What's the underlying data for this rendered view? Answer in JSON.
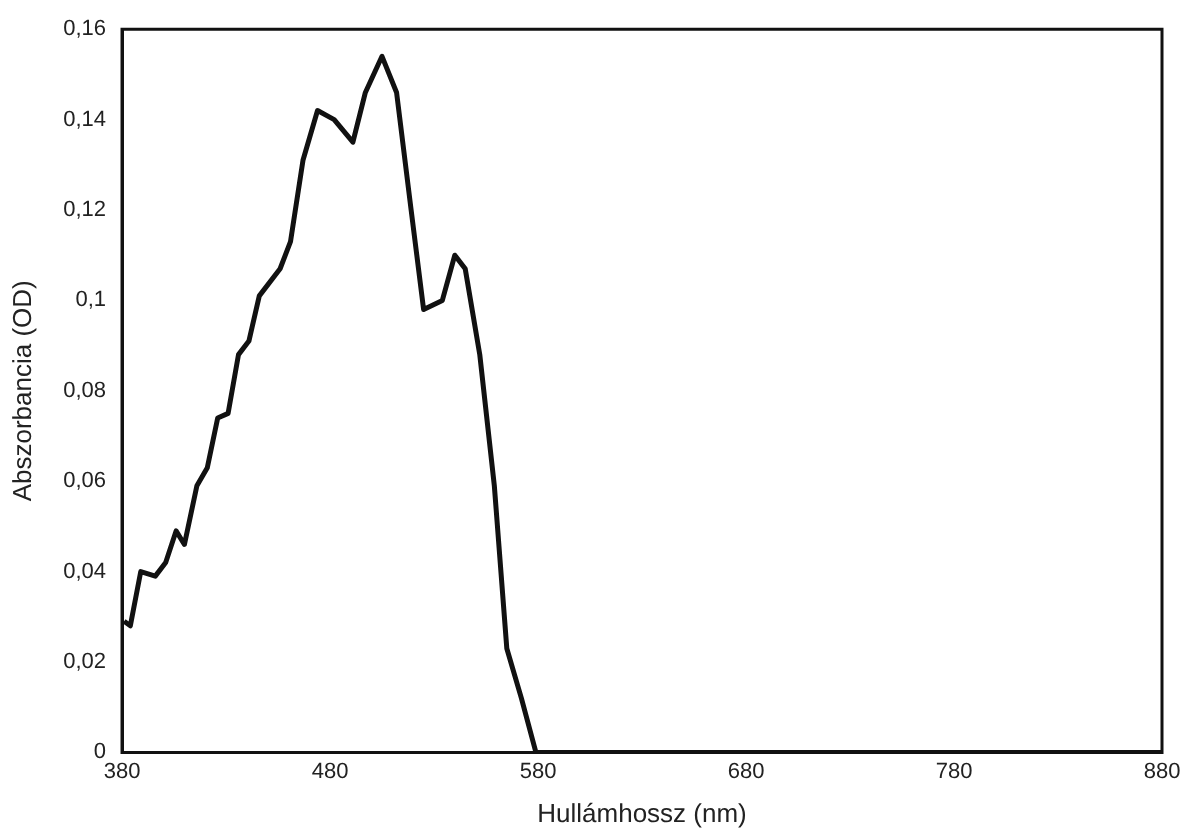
{
  "chart_data": {
    "type": "line",
    "xlabel": "Hullámhossz (nm)",
    "ylabel": "Abszorbancia (OD)",
    "xlim": [
      380,
      880
    ],
    "xticks": [
      380,
      480,
      580,
      680,
      780,
      880
    ],
    "ylim": [
      0,
      0.16
    ],
    "yticks": [
      {
        "value": 0,
        "label": "0"
      },
      {
        "value": 0.02,
        "label": "0,02"
      },
      {
        "value": 0.04,
        "label": "0,04"
      },
      {
        "value": 0.06,
        "label": "0,06"
      },
      {
        "value": 0.08,
        "label": "0,08"
      },
      {
        "value": 0.1,
        "label": "0,1"
      },
      {
        "value": 0.12,
        "label": "0,12"
      },
      {
        "value": 0.14,
        "label": "0,14"
      },
      {
        "value": 0.16,
        "label": "0,16"
      }
    ],
    "grid": false,
    "legend": false,
    "marker": "none",
    "line_style": "solid",
    "series": [
      {
        "color": "#111111",
        "x": [
          381,
          384,
          389,
          396,
          401,
          406,
          410,
          416,
          421,
          426,
          431,
          436,
          441,
          446,
          456,
          461,
          467,
          474,
          482,
          491,
          497,
          505,
          512,
          519,
          525,
          534,
          540,
          545,
          552,
          559,
          565,
          572,
          579,
          680,
          780,
          880
        ],
        "values": [
          0.029,
          0.028,
          0.04,
          0.039,
          0.042,
          0.049,
          0.046,
          0.059,
          0.063,
          0.074,
          0.075,
          0.088,
          0.091,
          0.101,
          0.107,
          0.113,
          0.131,
          0.142,
          0.14,
          0.135,
          0.146,
          0.154,
          0.146,
          0.12,
          0.098,
          0.1,
          0.11,
          0.107,
          0.088,
          0.059,
          0.023,
          0.012,
          0,
          0,
          0,
          0
        ]
      }
    ]
  }
}
